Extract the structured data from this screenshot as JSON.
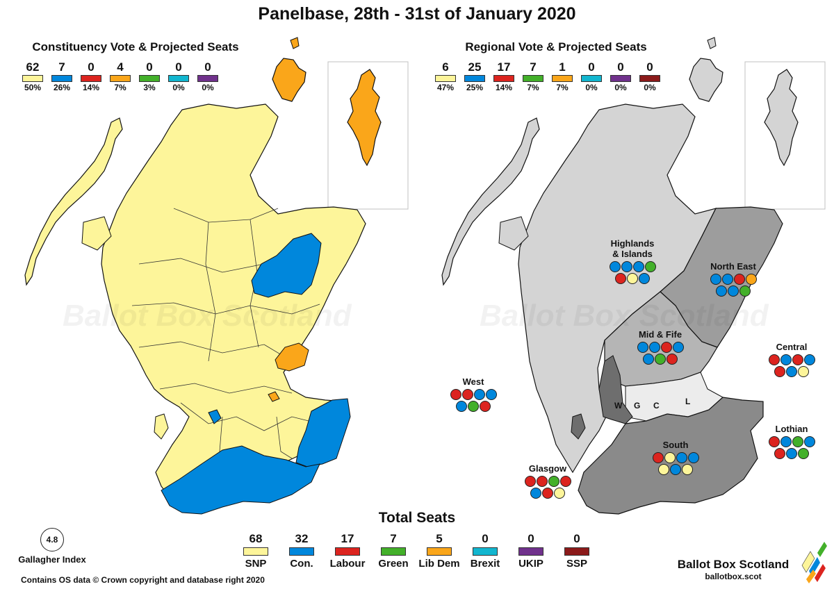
{
  "title": "Panelbase, 28th - 31st of January 2020",
  "constituency": {
    "title": "Constituency Vote & Projected Seats",
    "parties": [
      {
        "seats": "62",
        "pct": "50%",
        "color": "#fdf59a"
      },
      {
        "seats": "7",
        "pct": "26%",
        "color": "#0087dc"
      },
      {
        "seats": "0",
        "pct": "14%",
        "color": "#dc241f"
      },
      {
        "seats": "4",
        "pct": "7%",
        "color": "#faa61a"
      },
      {
        "seats": "0",
        "pct": "3%",
        "color": "#43b02a"
      },
      {
        "seats": "0",
        "pct": "0%",
        "color": "#12b6cf"
      },
      {
        "seats": "0",
        "pct": "0%",
        "color": "#70318c"
      }
    ]
  },
  "regional": {
    "title": "Regional Vote & Projected Seats",
    "parties": [
      {
        "seats": "6",
        "pct": "47%",
        "color": "#fdf59a"
      },
      {
        "seats": "25",
        "pct": "25%",
        "color": "#0087dc"
      },
      {
        "seats": "17",
        "pct": "14%",
        "color": "#dc241f"
      },
      {
        "seats": "7",
        "pct": "7%",
        "color": "#43b02a"
      },
      {
        "seats": "1",
        "pct": "7%",
        "color": "#faa61a"
      },
      {
        "seats": "0",
        "pct": "0%",
        "color": "#12b6cf"
      },
      {
        "seats": "0",
        "pct": "0%",
        "color": "#70318c"
      },
      {
        "seats": "0",
        "pct": "0%",
        "color": "#8b1a1a"
      }
    ]
  },
  "regions": [
    {
      "name": "Highlands\n& Islands",
      "dots": [
        "blue",
        "blue",
        "blue",
        "green",
        "red",
        "yellow",
        "blue"
      ]
    },
    {
      "name": "North East",
      "dots": [
        "blue",
        "blue",
        "red",
        "orange",
        "blue",
        "blue",
        "green"
      ]
    },
    {
      "name": "Mid & Fife",
      "dots": [
        "blue",
        "blue",
        "red",
        "blue",
        "blue",
        "green",
        "red"
      ]
    },
    {
      "name": "Central",
      "dots": [
        "red",
        "blue",
        "red",
        "blue",
        "red",
        "blue",
        "yellow"
      ]
    },
    {
      "name": "West",
      "dots": [
        "red",
        "red",
        "blue",
        "blue",
        "blue",
        "green",
        "red"
      ]
    },
    {
      "name": "Lothian",
      "dots": [
        "red",
        "blue",
        "green",
        "blue",
        "red",
        "blue",
        "green"
      ]
    },
    {
      "name": "South",
      "dots": [
        "red",
        "yellow",
        "blue",
        "blue",
        "yellow",
        "blue",
        "yellow"
      ]
    },
    {
      "name": "Glasgow",
      "dots": [
        "red",
        "red",
        "green",
        "red",
        "blue",
        "red",
        "yellow"
      ]
    }
  ],
  "map_letters": {
    "w": "W",
    "g": "G",
    "c": "C",
    "l": "L"
  },
  "dot_colors": {
    "blue": "#0087dc",
    "red": "#dc241f",
    "green": "#43b02a",
    "yellow": "#fdf59a",
    "orange": "#faa61a"
  },
  "totals": {
    "title": "Total Seats",
    "parties": [
      {
        "seats": "68",
        "name": "SNP",
        "color": "#fdf59a"
      },
      {
        "seats": "32",
        "name": "Con.",
        "color": "#0087dc"
      },
      {
        "seats": "17",
        "name": "Labour",
        "color": "#dc241f"
      },
      {
        "seats": "7",
        "name": "Green",
        "color": "#43b02a"
      },
      {
        "seats": "5",
        "name": "Lib Dem",
        "color": "#faa61a"
      },
      {
        "seats": "0",
        "name": "Brexit",
        "color": "#12b6cf"
      },
      {
        "seats": "0",
        "name": "UKIP",
        "color": "#70318c"
      },
      {
        "seats": "0",
        "name": "SSP",
        "color": "#8b1a1a"
      }
    ]
  },
  "gallagher": {
    "value": "4.8",
    "label": "Gallagher Index"
  },
  "copyright": "Contains OS data © Crown copyright and database right 2020",
  "brand": {
    "name": "Ballot Box Scotland",
    "url": "ballotbox.scot"
  },
  "watermark": "Ballot Box Scotland",
  "map_colors": {
    "snp": "#fdf59a",
    "con": "#0087dc",
    "libdem": "#faa61a",
    "region_light": "#d4d4d4",
    "region_mid": "#a9a9a9",
    "region_dark": "#8a8a8a",
    "region_darker": "#6e6e6e"
  }
}
